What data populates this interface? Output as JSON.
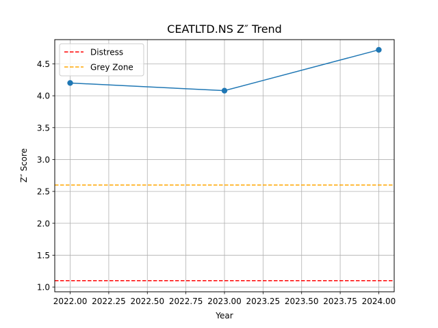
{
  "chart_data": {
    "type": "line",
    "title": "CEATLTD.NS Z″ Trend",
    "xlabel": "Year",
    "ylabel": "Z″ Score",
    "xlim": [
      1971.9,
      2024.1
    ],
    "ylim": [
      0.926,
      4.88
    ],
    "grid": true,
    "x_ticks": [
      2022.0,
      2022.25,
      2022.5,
      2022.75,
      2023.0,
      2023.25,
      2023.5,
      2023.75,
      2024.0
    ],
    "x_tick_labels": [
      "2022.00",
      "2022.25",
      "2022.50",
      "2022.75",
      "2023.00",
      "2023.25",
      "2023.50",
      "2023.75",
      "2024.00"
    ],
    "y_ticks": [
      1.0,
      1.5,
      2.0,
      2.5,
      3.0,
      3.5,
      4.0,
      4.5
    ],
    "y_tick_labels": [
      "1.0",
      "1.5",
      "2.0",
      "2.5",
      "3.0",
      "3.5",
      "4.0",
      "4.5"
    ],
    "series": [
      {
        "x": [
          2022,
          2023,
          2024
        ],
        "values": [
          4.2,
          4.08,
          4.72
        ],
        "color": "#1f77b4"
      }
    ],
    "reference_lines": [
      {
        "name": "Distress",
        "y": 1.1,
        "color": "#ff0000",
        "style": "dashed"
      },
      {
        "name": "Grey Zone",
        "y": 2.6,
        "color": "#ffa500",
        "style": "dashed"
      }
    ],
    "legend": {
      "position": "upper-left",
      "entries": [
        "Distress",
        "Grey Zone"
      ]
    }
  }
}
